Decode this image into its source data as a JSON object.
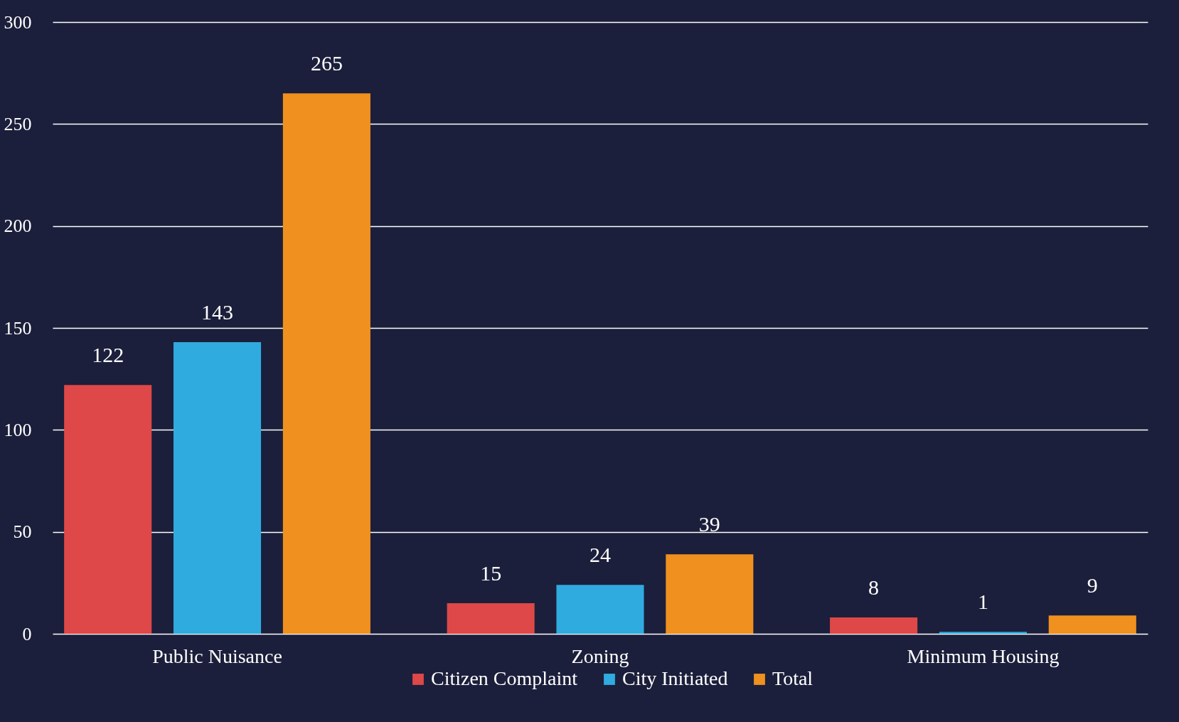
{
  "chart_data": {
    "type": "bar",
    "categories": [
      "Public Nuisance",
      "Zoning",
      "Minimum Housing"
    ],
    "series": [
      {
        "name": "Citizen Complaint",
        "color": "#de4848",
        "values": [
          122,
          15,
          8
        ]
      },
      {
        "name": "City Initiated",
        "color": "#30abdf",
        "values": [
          143,
          24,
          1
        ]
      },
      {
        "name": "Total",
        "color": "#f0901f",
        "values": [
          265,
          39,
          9
        ]
      }
    ],
    "ylim": [
      0,
      300
    ],
    "yticks": [
      0,
      50,
      100,
      150,
      200,
      250,
      300
    ],
    "grid": "y",
    "legend": "bottom",
    "data_labels": true
  }
}
